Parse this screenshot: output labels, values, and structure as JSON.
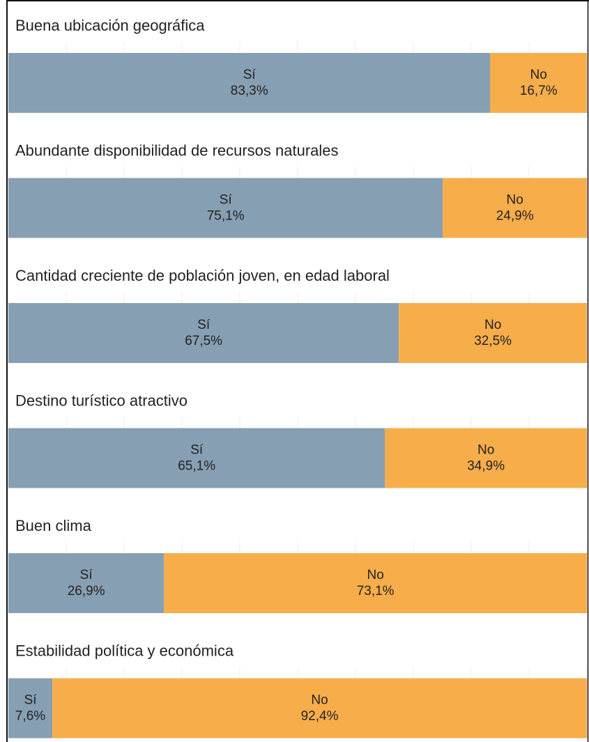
{
  "chart_data": [
    {
      "type": "bar",
      "orientation": "horizontal",
      "stacked": true,
      "title": "Buena ubicación geográfica",
      "xlim": [
        0,
        100
      ],
      "xticks": [
        0,
        10,
        20,
        30,
        40,
        50,
        60,
        70,
        80,
        90,
        100
      ],
      "grid": true,
      "series": [
        {
          "name": "Sí",
          "color": "#879fb2",
          "values": [
            83.3
          ],
          "value_labels": [
            "83,3%"
          ]
        },
        {
          "name": "No",
          "color": "#f8ad4b",
          "values": [
            16.7
          ],
          "value_labels": [
            "16,7%"
          ]
        }
      ]
    },
    {
      "type": "bar",
      "orientation": "horizontal",
      "stacked": true,
      "title": "Abundante disponibilidad de recursos naturales",
      "xlim": [
        0,
        100
      ],
      "xticks": [
        0,
        10,
        20,
        30,
        40,
        50,
        60,
        70,
        80,
        90,
        100
      ],
      "grid": true,
      "series": [
        {
          "name": "Sí",
          "color": "#879fb2",
          "values": [
            75.1
          ],
          "value_labels": [
            "75,1%"
          ]
        },
        {
          "name": "No",
          "color": "#f8ad4b",
          "values": [
            24.9
          ],
          "value_labels": [
            "24,9%"
          ]
        }
      ]
    },
    {
      "type": "bar",
      "orientation": "horizontal",
      "stacked": true,
      "title": "Cantidad creciente de población joven, en edad laboral",
      "xlim": [
        0,
        100
      ],
      "xticks": [
        0,
        10,
        20,
        30,
        40,
        50,
        60,
        70,
        80,
        90,
        100
      ],
      "grid": true,
      "series": [
        {
          "name": "Sí",
          "color": "#879fb2",
          "values": [
            67.5
          ],
          "value_labels": [
            "67,5%"
          ]
        },
        {
          "name": "No",
          "color": "#f8ad4b",
          "values": [
            32.5
          ],
          "value_labels": [
            "32,5%"
          ]
        }
      ]
    },
    {
      "type": "bar",
      "orientation": "horizontal",
      "stacked": true,
      "title": "Destino turístico atractivo",
      "xlim": [
        0,
        100
      ],
      "xticks": [
        0,
        10,
        20,
        30,
        40,
        50,
        60,
        70,
        80,
        90,
        100
      ],
      "grid": true,
      "series": [
        {
          "name": "Sí",
          "color": "#879fb2",
          "values": [
            65.1
          ],
          "value_labels": [
            "65,1%"
          ]
        },
        {
          "name": "No",
          "color": "#f8ad4b",
          "values": [
            34.9
          ],
          "value_labels": [
            "34,9%"
          ]
        }
      ]
    },
    {
      "type": "bar",
      "orientation": "horizontal",
      "stacked": true,
      "title": "Buen clima",
      "xlim": [
        0,
        100
      ],
      "xticks": [
        0,
        10,
        20,
        30,
        40,
        50,
        60,
        70,
        80,
        90,
        100
      ],
      "grid": true,
      "series": [
        {
          "name": "Sí",
          "color": "#879fb2",
          "values": [
            26.9
          ],
          "value_labels": [
            "26,9%"
          ]
        },
        {
          "name": "No",
          "color": "#f8ad4b",
          "values": [
            73.1
          ],
          "value_labels": [
            "73,1%"
          ]
        }
      ]
    },
    {
      "type": "bar",
      "orientation": "horizontal",
      "stacked": true,
      "title": "Estabilidad política y económica",
      "xlim": [
        0,
        100
      ],
      "xticks": [
        0,
        10,
        20,
        30,
        40,
        50,
        60,
        70,
        80,
        90,
        100
      ],
      "grid": true,
      "series": [
        {
          "name": "Sí",
          "color": "#879fb2",
          "values": [
            7.6
          ],
          "value_labels": [
            "7,6%"
          ]
        },
        {
          "name": "No",
          "color": "#f8ad4b",
          "values": [
            92.4
          ],
          "value_labels": [
            "92,4%"
          ]
        }
      ]
    }
  ]
}
